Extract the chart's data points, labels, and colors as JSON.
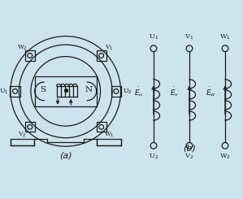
{
  "bg_color": "#cde4ee",
  "line_color": "#1a1a1a",
  "fig_width": 2.99,
  "fig_height": 2.45,
  "label_a": "(a)",
  "label_b": "(b)"
}
